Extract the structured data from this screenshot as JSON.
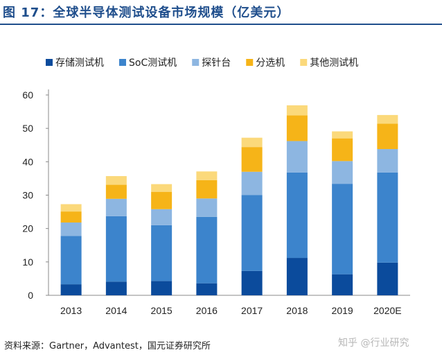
{
  "header": {
    "title": "图 17：全球半导体测试设备市场规模（亿美元）"
  },
  "footer": {
    "source": "资料来源：Gartner，Advantest，国元证券研究所",
    "watermark": "知乎 @行业研究"
  },
  "chart_data": {
    "type": "bar",
    "stacked": true,
    "title": "",
    "xlabel": "",
    "ylabel": "",
    "ylim": [
      0,
      60
    ],
    "yticks": [
      0,
      10,
      20,
      30,
      40,
      50,
      60
    ],
    "grid": false,
    "legend_position": "top",
    "categories": [
      "2013",
      "2014",
      "2015",
      "2016",
      "2017",
      "2018",
      "2019",
      "2020E"
    ],
    "series": [
      {
        "name": "存储测试机",
        "color": "#0b4b9c",
        "values": [
          3.3,
          4.1,
          4.3,
          3.6,
          7.3,
          11.2,
          6.3,
          9.8
        ]
      },
      {
        "name": "SoC测试机",
        "color": "#3c84cc",
        "values": [
          14.5,
          19.6,
          16.7,
          19.9,
          22.7,
          25.6,
          27.1,
          27.0
        ]
      },
      {
        "name": "探针台",
        "color": "#8db6e1",
        "values": [
          4.0,
          5.2,
          4.8,
          5.5,
          7.0,
          9.4,
          6.8,
          7.0
        ]
      },
      {
        "name": "分选机",
        "color": "#f6b418",
        "values": [
          3.3,
          4.2,
          5.2,
          5.5,
          7.4,
          7.7,
          6.8,
          7.6
        ]
      },
      {
        "name": "其他测试机",
        "color": "#fbd97b",
        "values": [
          2.2,
          2.6,
          2.3,
          2.6,
          2.8,
          3.0,
          2.1,
          2.6
        ]
      }
    ]
  }
}
